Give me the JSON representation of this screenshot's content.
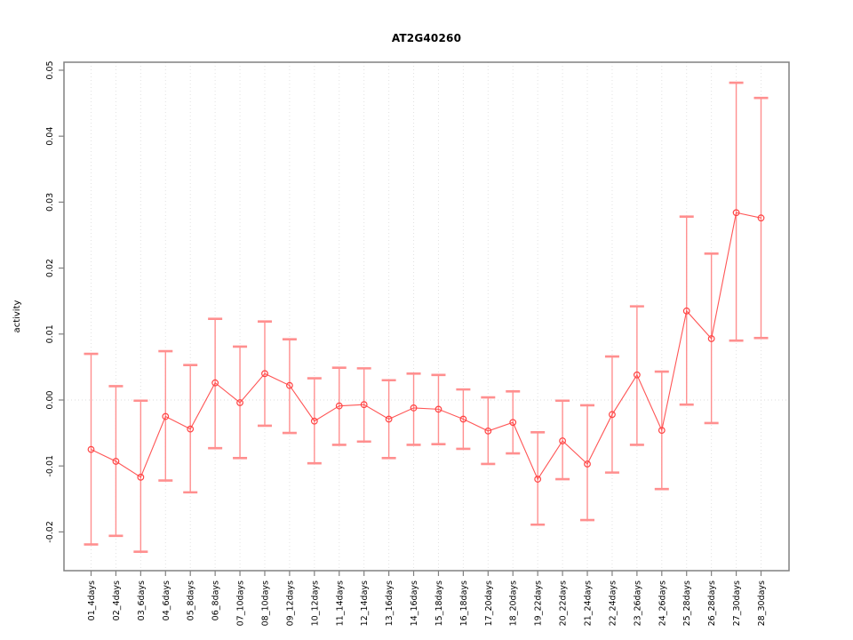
{
  "chart_data": {
    "type": "scatter",
    "title": "AT2G40260",
    "xlabel": "",
    "ylabel": "activity",
    "marker": "open-circle",
    "error_bars": true,
    "grid": {
      "vertical": "dotted",
      "zero_line": "dotted",
      "legend": "none"
    },
    "ylim": [
      -0.0255,
      0.0512
    ],
    "yticks": [
      0.05,
      0.04,
      0.03,
      0.02,
      0.01,
      0.0,
      -0.01,
      -0.02
    ],
    "ytick_labels": [
      "0.05",
      "0.04",
      "0.03",
      "0.02",
      "0.01",
      "0.00",
      "-0.01",
      "-0.02"
    ],
    "categories": [
      "01_4days",
      "02_4days",
      "03_6days",
      "04_6days",
      "05_8days",
      "06_8days",
      "07_10days",
      "08_10days",
      "09_12days",
      "10_12days",
      "11_14days",
      "12_14days",
      "13_16days",
      "14_16days",
      "15_18days",
      "16_18days",
      "17_20days",
      "18_20days",
      "19_22days",
      "20_22days",
      "21_24days",
      "22_24days",
      "23_26days",
      "24_26days",
      "25_28days",
      "26_28days",
      "27_30days",
      "28_30days"
    ],
    "series": [
      {
        "name": "activity",
        "values": [
          -0.0075,
          -0.0093,
          -0.0117,
          -0.0025,
          -0.0044,
          0.0026,
          -0.0004,
          0.004,
          0.0022,
          -0.0032,
          -0.0009,
          -0.0007,
          -0.0029,
          -0.0012,
          -0.0014,
          -0.0029,
          -0.0047,
          -0.0034,
          -0.012,
          -0.0062,
          -0.0097,
          -0.0022,
          0.0038,
          -0.0046,
          0.0135,
          0.0093,
          0.0284,
          0.0276
        ],
        "upper": [
          0.007,
          0.0021,
          -0.0001,
          0.0074,
          0.0053,
          0.0123,
          0.0081,
          0.0119,
          0.0092,
          0.0033,
          0.0049,
          0.0048,
          0.003,
          0.004,
          0.0038,
          0.0016,
          0.0004,
          0.0013,
          -0.0049,
          -0.0001,
          -0.0008,
          0.0066,
          0.0142,
          0.0043,
          0.0278,
          0.0222,
          0.0481,
          0.0458
        ],
        "lower": [
          -0.0219,
          -0.0206,
          -0.023,
          -0.0122,
          -0.014,
          -0.0073,
          -0.0088,
          -0.0039,
          -0.005,
          -0.0096,
          -0.0068,
          -0.0063,
          -0.0088,
          -0.0068,
          -0.0067,
          -0.0074,
          -0.0097,
          -0.0081,
          -0.0189,
          -0.012,
          -0.0182,
          -0.011,
          -0.0068,
          -0.0135,
          -0.0007,
          -0.0035,
          0.009,
          0.0094
        ]
      }
    ],
    "colors": {
      "point": "#ff4444",
      "line": "#ff5555",
      "error_bar": "#ff8f8f",
      "axis": "#808080",
      "grid": "#e2e2e2",
      "zero_line": "#dedede",
      "text": "#000000"
    }
  }
}
